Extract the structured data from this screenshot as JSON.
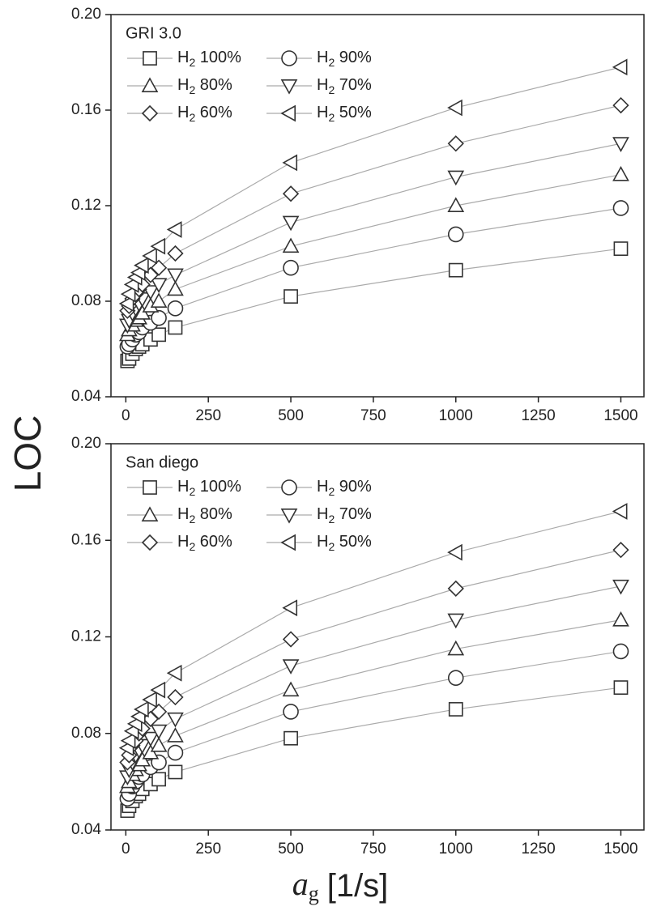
{
  "chart_data": [
    {
      "type": "line",
      "title": "GRI 3.0",
      "ylabel": "LOC",
      "x": [
        5,
        10,
        20,
        30,
        40,
        50,
        75,
        100,
        150,
        500,
        1000,
        1500
      ],
      "xlim": [
        -45,
        1570
      ],
      "xticks": [
        0,
        250,
        500,
        750,
        1000,
        1250,
        1500
      ],
      "ylim": [
        0.04,
        0.2
      ],
      "yticks": [
        0.04,
        0.08,
        0.12,
        0.16,
        {
          "value": 0.2,
          "label": "0.20"
        }
      ],
      "series": [
        {
          "name": "H2 100%",
          "marker": "square",
          "color": "#333333",
          "values": [
            0.055,
            0.056,
            0.058,
            0.06,
            0.061,
            0.062,
            0.064,
            0.066,
            0.069,
            0.082,
            0.093,
            0.102
          ]
        },
        {
          "name": "H2 90%",
          "marker": "circle",
          "color": "#333333",
          "values": [
            0.061,
            0.062,
            0.064,
            0.066,
            0.067,
            0.069,
            0.071,
            0.073,
            0.077,
            0.094,
            0.108,
            0.119
          ]
        },
        {
          "name": "H2 80%",
          "marker": "triangle-up",
          "color": "#333333",
          "values": [
            0.066,
            0.068,
            0.07,
            0.072,
            0.073,
            0.075,
            0.078,
            0.08,
            0.085,
            0.103,
            0.12,
            0.133
          ]
        },
        {
          "name": "H2 70%",
          "marker": "triangle-down",
          "color": "#333333",
          "values": [
            0.07,
            0.072,
            0.075,
            0.077,
            0.079,
            0.081,
            0.084,
            0.087,
            0.091,
            0.113,
            0.132,
            0.146
          ]
        },
        {
          "name": "H2 60%",
          "marker": "diamond",
          "color": "#333333",
          "values": [
            0.076,
            0.078,
            0.081,
            0.083,
            0.085,
            0.087,
            0.091,
            0.094,
            0.1,
            0.125,
            0.146,
            0.162
          ]
        },
        {
          "name": "H2 50%",
          "marker": "triangle-left",
          "color": "#333333",
          "values": [
            0.079,
            0.083,
            0.087,
            0.09,
            0.092,
            0.095,
            0.099,
            0.103,
            0.11,
            0.138,
            0.161,
            0.178
          ]
        }
      ]
    },
    {
      "type": "line",
      "title": "San diego",
      "xlabel": {
        "symbol": "a",
        "subscript": "g",
        "unit": "[1/s]"
      },
      "x": [
        5,
        10,
        20,
        30,
        40,
        50,
        75,
        100,
        150,
        500,
        1000,
        1500
      ],
      "xlim": [
        -45,
        1570
      ],
      "xticks": [
        0,
        250,
        500,
        750,
        1000,
        1250,
        1500
      ],
      "ylim": [
        0.04,
        0.2
      ],
      "yticks": [
        0.04,
        0.08,
        0.12,
        0.16,
        {
          "value": 0.2,
          "label": "0.20"
        }
      ],
      "series": [
        {
          "name": "H2 100%",
          "marker": "square",
          "color": "#333333",
          "values": [
            0.048,
            0.05,
            0.052,
            0.054,
            0.055,
            0.057,
            0.059,
            0.061,
            0.064,
            0.078,
            0.09,
            0.099
          ]
        },
        {
          "name": "H2 90%",
          "marker": "circle",
          "color": "#333333",
          "values": [
            0.053,
            0.055,
            0.058,
            0.06,
            0.062,
            0.063,
            0.066,
            0.068,
            0.072,
            0.089,
            0.103,
            0.114
          ]
        },
        {
          "name": "H2 80%",
          "marker": "triangle-up",
          "color": "#333333",
          "values": [
            0.058,
            0.06,
            0.063,
            0.065,
            0.067,
            0.069,
            0.072,
            0.075,
            0.079,
            0.098,
            0.115,
            0.127
          ]
        },
        {
          "name": "H2 70%",
          "marker": "triangle-down",
          "color": "#333333",
          "values": [
            0.062,
            0.065,
            0.068,
            0.071,
            0.073,
            0.075,
            0.078,
            0.081,
            0.086,
            0.108,
            0.127,
            0.141
          ]
        },
        {
          "name": "H2 60%",
          "marker": "diamond",
          "color": "#333333",
          "values": [
            0.068,
            0.071,
            0.075,
            0.077,
            0.08,
            0.082,
            0.086,
            0.089,
            0.095,
            0.119,
            0.14,
            0.156
          ]
        },
        {
          "name": "H2 50%",
          "marker": "triangle-left",
          "color": "#333333",
          "values": [
            0.074,
            0.077,
            0.081,
            0.084,
            0.087,
            0.09,
            0.094,
            0.098,
            0.105,
            0.132,
            0.155,
            0.172
          ]
        }
      ]
    }
  ]
}
